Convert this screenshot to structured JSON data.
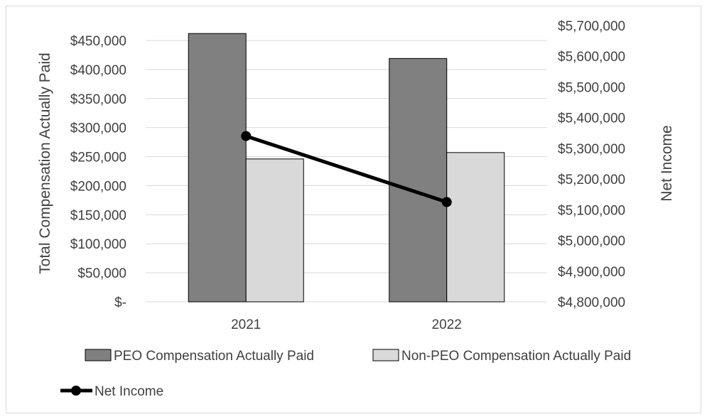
{
  "chart_data": {
    "type": "bar",
    "categories": [
      "2021",
      "2022"
    ],
    "series": [
      {
        "name": "PEO Compensation Actually Paid",
        "values": [
          462000,
          419000
        ],
        "color": "#808080",
        "axis": "left",
        "kind": "bar"
      },
      {
        "name": "Non-PEO Compensation Actually Paid",
        "values": [
          246000,
          257000
        ],
        "color": "#d9d9d9",
        "axis": "left",
        "kind": "bar"
      },
      {
        "name": "Net Income",
        "values": [
          5340000,
          5125000
        ],
        "color": "#000000",
        "axis": "right",
        "kind": "line"
      }
    ],
    "ylabel": "Total Compensation Actually Paid",
    "y2label": "Net Income",
    "ylim": [
      0,
      450000
    ],
    "y2lim": [
      4800000,
      5700000
    ],
    "yticks": [
      "$-",
      "$50,000",
      "$100,000",
      "$150,000",
      "$200,000",
      "$250,000",
      "$300,000",
      "$350,000",
      "$400,000",
      "$450,000"
    ],
    "y2ticks": [
      "$4,800,000",
      "$4,900,000",
      "$5,000,000",
      "$5,100,000",
      "$5,200,000",
      "$5,300,000",
      "$5,400,000",
      "$5,500,000",
      "$5,600,000",
      "$5,700,000"
    ],
    "grid": true,
    "legend_position": "bottom"
  }
}
